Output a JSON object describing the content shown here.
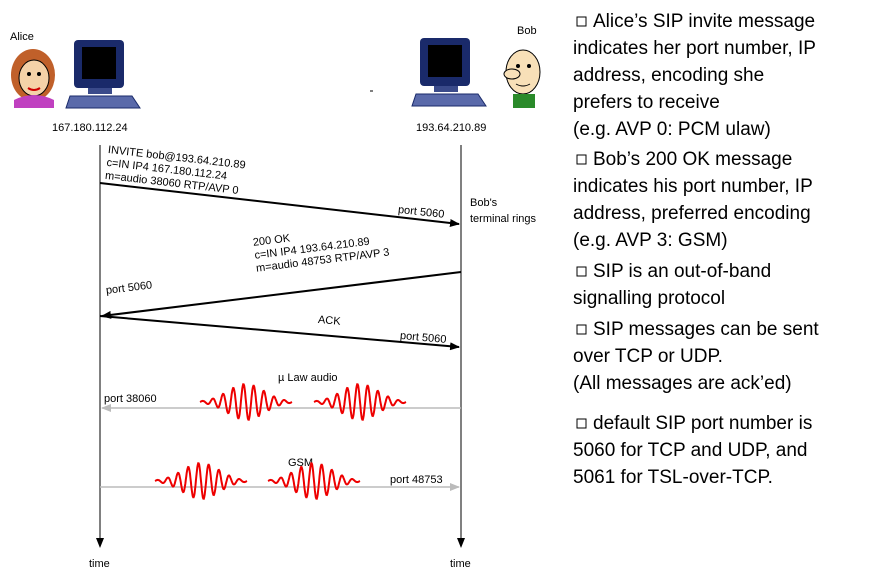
{
  "alice": {
    "name": "Alice",
    "ip": "167.180.112.24",
    "time": "time"
  },
  "bob": {
    "name": "Bob",
    "ip": "193.64.210.89",
    "time": "time"
  },
  "messages": [
    {
      "lines": [
        "INVITE bob@193.64.210.89",
        "c=IN IP4 167.180.112.24",
        "m=audio 38060 RTP/AVP 0"
      ],
      "port": "port 5060"
    },
    {
      "lines": [
        "200 OK",
        "c=IN IP4 193.64.210.89",
        "m=audio 48753 RTP/AVP 3"
      ],
      "port": "port 5060"
    },
    {
      "lines": [
        "ACK"
      ],
      "port": "port 5060"
    }
  ],
  "bob_note": [
    "Bob's",
    "terminal rings"
  ],
  "media": [
    {
      "label": "µ Law audio",
      "port": "port 38060"
    },
    {
      "label": "GSM",
      "port": "port 48753"
    }
  ],
  "bullets": [
    {
      "lines": [
        "Alice’s SIP invite message",
        "indicates her port number, IP",
        "address, encoding she",
        "prefers to receive",
        "(e.g. AVP 0: PCM ulaw)"
      ]
    },
    {
      "lines": [
        "Bob’s 200 OK message",
        "indicates his port number, IP",
        "address, preferred encoding",
        "(e.g. AVP 3: GSM)"
      ]
    },
    {
      "lines": [
        "SIP is an out-of-band",
        "signalling protocol"
      ]
    },
    {
      "lines": [
        "SIP messages can be sent",
        "over TCP or UDP.",
        "(All messages are ack’ed)"
      ]
    },
    {
      "lines": [
        "default SIP port number is",
        "5060 for TCP and UDP, and",
        "5061 for TSL-over-TCP."
      ]
    }
  ]
}
